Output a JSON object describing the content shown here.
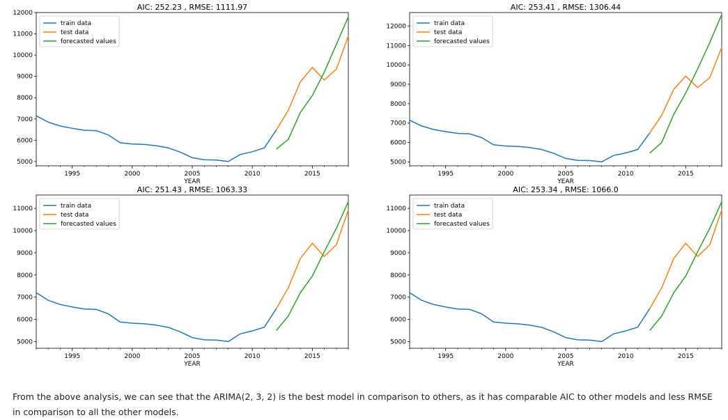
{
  "colors": {
    "train": "#1f77b4",
    "test": "#ff7f0e",
    "forecast": "#2ca02c"
  },
  "chart_data": [
    {
      "type": "line",
      "title": "AIC: 252.23 , RMSE: 1111.97",
      "xlabel": "YEAR",
      "ylabel": "",
      "xlim": [
        1992,
        2018
      ],
      "ylim": [
        4800,
        12000
      ],
      "yticks": [
        5000,
        6000,
        7000,
        8000,
        9000,
        10000,
        11000,
        12000
      ],
      "xticks": [
        1995,
        2000,
        2005,
        2010,
        2015
      ],
      "legend": "top-left",
      "series": [
        {
          "name": "train data",
          "color_key": "train",
          "x": [
            1992,
            1993,
            1994,
            1995,
            1996,
            1997,
            1998,
            1999,
            2000,
            2001,
            2002,
            2003,
            2004,
            2005,
            2006,
            2007,
            2008,
            2009,
            2010,
            2011,
            2012
          ],
          "y": [
            7150,
            6850,
            6670,
            6560,
            6470,
            6450,
            6250,
            5880,
            5820,
            5800,
            5740,
            5640,
            5440,
            5180,
            5080,
            5070,
            5000,
            5330,
            5460,
            5640,
            6480
          ]
        },
        {
          "name": "test data",
          "color_key": "test",
          "x": [
            2012,
            2013,
            2014,
            2015,
            2016,
            2017,
            2018
          ],
          "y": [
            6480,
            7400,
            8740,
            9420,
            8830,
            9340,
            10900
          ]
        },
        {
          "name": "forecasted values",
          "color_key": "forecast",
          "x": [
            2012,
            2013,
            2014,
            2015,
            2016,
            2017,
            2018
          ],
          "y": [
            5580,
            6040,
            7300,
            8100,
            9200,
            10500,
            11800
          ]
        }
      ]
    },
    {
      "type": "line",
      "title": "AIC: 253.41 , RMSE: 1306.44",
      "xlabel": "YEAR",
      "ylabel": "",
      "xlim": [
        1992,
        2018
      ],
      "ylim": [
        4800,
        12700
      ],
      "yticks": [
        5000,
        6000,
        7000,
        8000,
        9000,
        10000,
        11000,
        12000
      ],
      "xticks": [
        1995,
        2000,
        2005,
        2010,
        2015
      ],
      "legend": "top-left",
      "series": [
        {
          "name": "train data",
          "color_key": "train",
          "x": [
            1992,
            1993,
            1994,
            1995,
            1996,
            1997,
            1998,
            1999,
            2000,
            2001,
            2002,
            2003,
            2004,
            2005,
            2006,
            2007,
            2008,
            2009,
            2010,
            2011,
            2012
          ],
          "y": [
            7150,
            6850,
            6670,
            6560,
            6470,
            6450,
            6250,
            5880,
            5820,
            5800,
            5740,
            5640,
            5440,
            5180,
            5080,
            5070,
            5000,
            5330,
            5460,
            5640,
            6480
          ]
        },
        {
          "name": "test data",
          "color_key": "test",
          "x": [
            2012,
            2013,
            2014,
            2015,
            2016,
            2017,
            2018
          ],
          "y": [
            6480,
            7400,
            8740,
            9420,
            8830,
            9340,
            10900
          ]
        },
        {
          "name": "forecasted values",
          "color_key": "forecast",
          "x": [
            2012,
            2013,
            2014,
            2015,
            2016,
            2017,
            2018
          ],
          "y": [
            5450,
            6000,
            7450,
            8550,
            9800,
            11150,
            12600
          ]
        }
      ]
    },
    {
      "type": "line",
      "title": "AIC: 251.43 , RMSE: 1063.33",
      "xlabel": "YEAR",
      "ylabel": "",
      "xlim": [
        1992,
        2018
      ],
      "ylim": [
        4700,
        11600
      ],
      "yticks": [
        5000,
        6000,
        7000,
        8000,
        9000,
        10000,
        11000
      ],
      "xticks": [
        1995,
        2000,
        2005,
        2010,
        2015
      ],
      "legend": "top-left",
      "series": [
        {
          "name": "train data",
          "color_key": "train",
          "x": [
            1992,
            1993,
            1994,
            1995,
            1996,
            1997,
            1998,
            1999,
            2000,
            2001,
            2002,
            2003,
            2004,
            2005,
            2006,
            2007,
            2008,
            2009,
            2010,
            2011,
            2012
          ],
          "y": [
            7200,
            6860,
            6670,
            6560,
            6470,
            6450,
            6250,
            5880,
            5830,
            5800,
            5740,
            5640,
            5440,
            5180,
            5080,
            5070,
            5000,
            5350,
            5480,
            5650,
            6480
          ]
        },
        {
          "name": "test data",
          "color_key": "test",
          "x": [
            2012,
            2013,
            2014,
            2015,
            2016,
            2017,
            2018
          ],
          "y": [
            6480,
            7420,
            8740,
            9430,
            8830,
            9360,
            10930
          ]
        },
        {
          "name": "forecasted values",
          "color_key": "forecast",
          "x": [
            2012,
            2013,
            2014,
            2015,
            2016,
            2017,
            2018
          ],
          "y": [
            5500,
            6150,
            7200,
            7950,
            9050,
            10100,
            11300
          ]
        }
      ]
    },
    {
      "type": "line",
      "title": "AIC: 253.34 , RMSE: 1066.0",
      "xlabel": "YEAR",
      "ylabel": "",
      "xlim": [
        1992,
        2018
      ],
      "ylim": [
        4700,
        11600
      ],
      "yticks": [
        5000,
        6000,
        7000,
        8000,
        9000,
        10000,
        11000
      ],
      "xticks": [
        1995,
        2000,
        2005,
        2010,
        2015
      ],
      "legend": "top-left",
      "series": [
        {
          "name": "train data",
          "color_key": "train",
          "x": [
            1992,
            1993,
            1994,
            1995,
            1996,
            1997,
            1998,
            1999,
            2000,
            2001,
            2002,
            2003,
            2004,
            2005,
            2006,
            2007,
            2008,
            2009,
            2010,
            2011,
            2012
          ],
          "y": [
            7200,
            6860,
            6670,
            6560,
            6470,
            6450,
            6250,
            5880,
            5830,
            5800,
            5740,
            5640,
            5440,
            5180,
            5080,
            5070,
            5000,
            5350,
            5480,
            5650,
            6480
          ]
        },
        {
          "name": "test data",
          "color_key": "test",
          "x": [
            2012,
            2013,
            2014,
            2015,
            2016,
            2017,
            2018
          ],
          "y": [
            6480,
            7420,
            8740,
            9430,
            8830,
            9360,
            10930
          ]
        },
        {
          "name": "forecasted values",
          "color_key": "forecast",
          "x": [
            2012,
            2013,
            2014,
            2015,
            2016,
            2017,
            2018
          ],
          "y": [
            5500,
            6150,
            7200,
            7950,
            9050,
            10100,
            11300
          ]
        }
      ]
    }
  ],
  "analysis_text": "From the above analysis, we can see that the ARIMA(2, 3, 2) is the best model in comparison to others, as it has comparable AIC to other models and less RMSE in comparison to all the other models."
}
